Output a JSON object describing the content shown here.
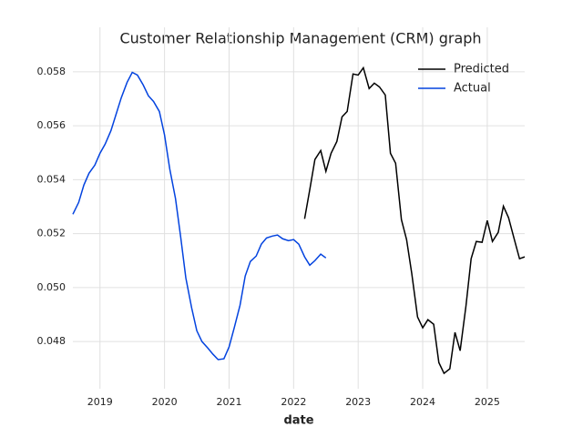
{
  "chart_data": {
    "type": "line",
    "title": "Customer Relationship Management (CRM) graph",
    "x_label": "date",
    "series": [
      {
        "name": "Predicted",
        "color": "#000000",
        "x": [
          2022.17,
          2022.25,
          2022.33,
          2022.42,
          2022.5,
          2022.58,
          2022.67,
          2022.75,
          2022.83,
          2022.92,
          2023,
          2023.08,
          2023.17,
          2023.25,
          2023.33,
          2023.42,
          2023.5,
          2023.58,
          2023.67,
          2023.75,
          2023.83,
          2023.92,
          2024,
          2024.08,
          2024.17,
          2024.25,
          2024.33,
          2024.42,
          2024.5,
          2024.58,
          2024.67,
          2024.75,
          2024.83,
          2024.92,
          2025,
          2025.08,
          2025.17,
          2025.25,
          2025.33,
          2025.42,
          2025.5,
          2025.58
        ],
        "values": [
          0.05255,
          0.05363,
          0.05475,
          0.05508,
          0.05431,
          0.05498,
          0.05542,
          0.05633,
          0.05653,
          0.05792,
          0.05788,
          0.05815,
          0.05738,
          0.05758,
          0.05744,
          0.05714,
          0.05498,
          0.05461,
          0.05252,
          0.05178,
          0.05053,
          0.04891,
          0.04851,
          0.04881,
          0.04864,
          0.04722,
          0.04682,
          0.04699,
          0.04834,
          0.04766,
          0.04932,
          0.05107,
          0.05171,
          0.05168,
          0.05249,
          0.05171,
          0.05205,
          0.05302,
          0.05259,
          0.05178,
          0.05107,
          0.05114
        ]
      },
      {
        "name": "Actual",
        "color": "#0343df",
        "x": [
          2018.58,
          2018.67,
          2018.75,
          2018.83,
          2018.92,
          2019,
          2019.08,
          2019.17,
          2019.25,
          2019.33,
          2019.42,
          2019.5,
          2019.58,
          2019.67,
          2019.75,
          2019.83,
          2019.92,
          2020,
          2020.08,
          2020.17,
          2020.25,
          2020.33,
          2020.42,
          2020.5,
          2020.58,
          2020.67,
          2020.75,
          2020.83,
          2020.92,
          2021,
          2021.08,
          2021.17,
          2021.25,
          2021.33,
          2021.42,
          2021.5,
          2021.58,
          2021.67,
          2021.75,
          2021.83,
          2021.92,
          2022,
          2022.08,
          2022.17,
          2022.25,
          2022.33,
          2022.42,
          2022.5
        ],
        "values": [
          0.05272,
          0.05316,
          0.0538,
          0.05424,
          0.05454,
          0.05498,
          0.05532,
          0.05582,
          0.05643,
          0.05704,
          0.05761,
          0.05798,
          0.05788,
          0.05751,
          0.05711,
          0.0569,
          0.05653,
          0.05566,
          0.05441,
          0.0533,
          0.05188,
          0.05036,
          0.04925,
          0.0484,
          0.048,
          0.04776,
          0.04753,
          0.04733,
          0.04736,
          0.0478,
          0.04851,
          0.04935,
          0.05043,
          0.05097,
          0.05117,
          0.05161,
          0.05184,
          0.05191,
          0.05195,
          0.05181,
          0.05174,
          0.05178,
          0.05161,
          0.05114,
          0.05083,
          0.051,
          0.05124,
          0.0511
        ]
      }
    ],
    "xlim": [
      2018.58,
      2025.58
    ],
    "xticks": [
      2019,
      2020,
      2021,
      2022,
      2023,
      2024,
      2025
    ],
    "ylim": [
      0.04625,
      0.05965
    ],
    "yticks": [
      0.048,
      {
        "value": 0.05,
        "label": "0.050"
      },
      0.052,
      0.054,
      0.056,
      0.058
    ],
    "grid": true,
    "legend": "upper right"
  }
}
